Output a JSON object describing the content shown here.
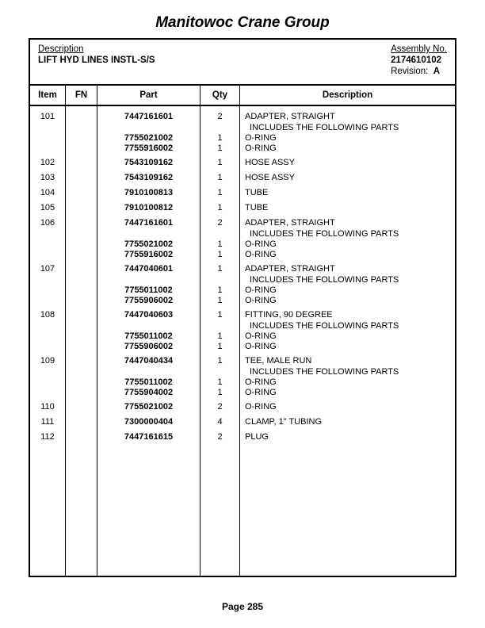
{
  "company": "Manitowoc Crane Group",
  "header": {
    "desc_label": "Description",
    "desc_value": "LIFT HYD LINES INSTL-S/S",
    "assy_label": "Assembly No.",
    "assy_value": "2174610102",
    "rev_label": "Revision:",
    "rev_value": "A"
  },
  "columns": {
    "item": "Item",
    "fn": "FN",
    "part": "Part",
    "qty": "Qty",
    "desc": "Description"
  },
  "rows": [
    {
      "item": "101",
      "part": "7447161601",
      "qty": "2",
      "desc": "ADAPTER, STRAIGHT",
      "sub": "INCLUDES THE FOLLOWING PARTS"
    },
    {
      "item": "",
      "part": "7755021002",
      "qty": "1",
      "desc": "O-RING",
      "tight": true
    },
    {
      "item": "",
      "part": "7755916002",
      "qty": "1",
      "desc": "O-RING",
      "tight": true
    },
    {
      "item": "102",
      "part": "7543109162",
      "qty": "1",
      "desc": "HOSE ASSY",
      "gapBefore": true
    },
    {
      "item": "103",
      "part": "7543109162",
      "qty": "1",
      "desc": "HOSE ASSY",
      "gapBefore": true
    },
    {
      "item": "104",
      "part": "7910100813",
      "qty": "1",
      "desc": "TUBE",
      "gapBefore": true
    },
    {
      "item": "105",
      "part": "7910100812",
      "qty": "1",
      "desc": "TUBE",
      "gapBefore": true
    },
    {
      "item": "106",
      "part": "7447161601",
      "qty": "2",
      "desc": "ADAPTER, STRAIGHT",
      "sub": "INCLUDES THE FOLLOWING PARTS",
      "gapBefore": true
    },
    {
      "item": "",
      "part": "7755021002",
      "qty": "1",
      "desc": "O-RING",
      "tight": true
    },
    {
      "item": "",
      "part": "7755916002",
      "qty": "1",
      "desc": "O-RING",
      "tight": true
    },
    {
      "item": "107",
      "part": "7447040601",
      "qty": "1",
      "desc": "ADAPTER, STRAIGHT",
      "sub": "INCLUDES THE FOLLOWING PARTS",
      "gapBefore": true
    },
    {
      "item": "",
      "part": "7755011002",
      "qty": "1",
      "desc": "O-RING",
      "tight": true
    },
    {
      "item": "",
      "part": "7755906002",
      "qty": "1",
      "desc": "O-RING",
      "tight": true
    },
    {
      "item": "108",
      "part": "7447040603",
      "qty": "1",
      "desc": "FITTING, 90 DEGREE",
      "sub": "INCLUDES THE FOLLOWING PARTS",
      "gapBefore": true
    },
    {
      "item": "",
      "part": "7755011002",
      "qty": "1",
      "desc": "O-RING",
      "tight": true
    },
    {
      "item": "",
      "part": "7755906002",
      "qty": "1",
      "desc": "O-RING",
      "tight": true
    },
    {
      "item": "109",
      "part": "7447040434",
      "qty": "1",
      "desc": "TEE, MALE RUN",
      "sub": "INCLUDES THE FOLLOWING PARTS",
      "gapBefore": true
    },
    {
      "item": "",
      "part": "7755011002",
      "qty": "1",
      "desc": "O-RING",
      "tight": true
    },
    {
      "item": "",
      "part": "7755904002",
      "qty": "1",
      "desc": "O-RING",
      "tight": true
    },
    {
      "item": "110",
      "part": "7755021002",
      "qty": "2",
      "desc": "O-RING",
      "gapBefore": true
    },
    {
      "item": "111",
      "part": "7300000404",
      "qty": "4",
      "desc": "CLAMP, 1\" TUBING",
      "gapBefore": true
    },
    {
      "item": "112",
      "part": "7447161615",
      "qty": "2",
      "desc": "PLUG",
      "gapBefore": true
    }
  ],
  "footer": "Page 285"
}
